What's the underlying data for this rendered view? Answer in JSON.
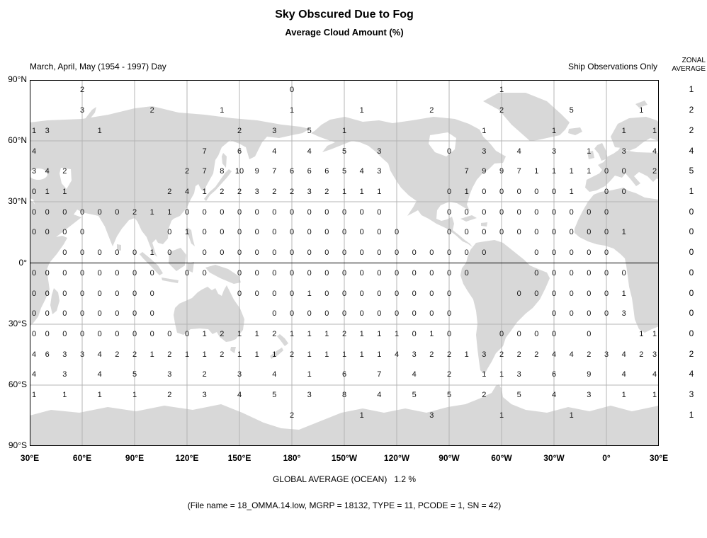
{
  "title": "Sky Obscured Due to Fog",
  "subtitle": "Average Cloud Amount (%)",
  "header": {
    "left_label": "March, April, May (1954 - 1997) Day",
    "right_label": "Ship Observations Only",
    "zonal_header_line1": "ZONAL",
    "zonal_header_line2": "AVERAGE"
  },
  "footer": {
    "global_average": "GLOBAL AVERAGE (OCEAN)   1.2 %",
    "file_info": "(File name = 18_OMMA.14.low, MGRP = 18132, TYPE = 11, PCODE = 1, SN = 42)"
  },
  "colors": {
    "land": "#d8d8d8",
    "grid_line": "#b4b4b4",
    "equator_line": "#000000",
    "frame": "#000000",
    "text": "#000000"
  },
  "chart_data": {
    "type": "heatmap",
    "title": "Sky Obscured Due to Fog",
    "subtitle": "Average Cloud Amount (%)",
    "units": "%",
    "season": "March, April, May (1954 - 1997) Day",
    "source": "Ship Observations Only",
    "global_average_pct": 1.2,
    "lat_labels": [
      "90°N",
      "60°N",
      "30°N",
      "0°",
      "30°S",
      "60°S",
      "90°S"
    ],
    "lon_labels": [
      "30°E",
      "60°E",
      "90°E",
      "120°E",
      "150°E",
      "180°",
      "150°W",
      "120°W",
      "90°W",
      "60°W",
      "30°W",
      "0°",
      "30°E"
    ],
    "lon_start_deg_east": 30,
    "cell_deg": 10,
    "zonal_averages": [
      "1",
      "2",
      "2",
      "4",
      "5",
      "1",
      "0",
      "0",
      "0",
      "0",
      "0",
      "0",
      "0",
      "2",
      "4",
      "3",
      "1",
      null
    ],
    "grid": [
      [
        null,
        null,
        null,
        "2",
        null,
        null,
        null,
        null,
        null,
        null,
        null,
        null,
        null,
        null,
        null,
        "0",
        null,
        null,
        null,
        null,
        null,
        null,
        null,
        null,
        null,
        null,
        null,
        "1",
        null,
        null,
        null,
        null,
        null,
        null,
        null,
        null,
        null
      ],
      [
        null,
        null,
        null,
        "3",
        null,
        null,
        null,
        "2",
        null,
        null,
        null,
        "1",
        null,
        null,
        null,
        "1",
        null,
        null,
        null,
        "1",
        null,
        null,
        null,
        "2",
        null,
        null,
        null,
        "2",
        null,
        null,
        null,
        "5",
        null,
        null,
        null,
        "1",
        null
      ],
      [
        "1",
        "3",
        null,
        null,
        "1",
        null,
        null,
        null,
        null,
        null,
        null,
        null,
        "2",
        null,
        "3",
        null,
        "5",
        null,
        "1",
        null,
        null,
        null,
        null,
        null,
        null,
        null,
        "1",
        null,
        null,
        null,
        "1",
        null,
        null,
        null,
        "1",
        null,
        "1"
      ],
      [
        "4",
        null,
        null,
        null,
        null,
        null,
        null,
        null,
        null,
        null,
        "7",
        null,
        "6",
        null,
        "4",
        null,
        "4",
        null,
        "5",
        null,
        "3",
        null,
        null,
        null,
        "0",
        null,
        "3",
        null,
        "4",
        null,
        "3",
        null,
        "1",
        null,
        "3",
        null,
        "4"
      ],
      [
        "3",
        "4",
        "2",
        null,
        null,
        null,
        null,
        null,
        null,
        "2",
        "7",
        "8",
        "10",
        "9",
        "7",
        "6",
        "6",
        "6",
        "5",
        "4",
        "3",
        null,
        null,
        null,
        null,
        "7",
        "9",
        "9",
        "7",
        "1",
        "1",
        "1",
        "1",
        "0",
        "0",
        null,
        "2"
      ],
      [
        "0",
        "1",
        "1",
        null,
        null,
        null,
        null,
        null,
        "2",
        "4",
        "1",
        "2",
        "2",
        "3",
        "2",
        "2",
        "3",
        "2",
        "1",
        "1",
        "1",
        null,
        null,
        null,
        "0",
        "1",
        "0",
        "0",
        "0",
        "0",
        "0",
        "1",
        null,
        "0",
        "0",
        null,
        null
      ],
      [
        "0",
        "0",
        "0",
        "0",
        "0",
        "0",
        "2",
        "1",
        "1",
        "0",
        "0",
        "0",
        "0",
        "0",
        "0",
        "0",
        "0",
        "0",
        "0",
        "0",
        "0",
        null,
        null,
        null,
        "0",
        "0",
        "0",
        "0",
        "0",
        "0",
        "0",
        "0",
        "0",
        "0",
        null,
        null,
        null
      ],
      [
        "0",
        "0",
        "0",
        "0",
        null,
        null,
        null,
        null,
        "0",
        "1",
        "0",
        "0",
        "0",
        "0",
        "0",
        "0",
        "0",
        "0",
        "0",
        "0",
        "0",
        "0",
        null,
        null,
        "0",
        "0",
        "0",
        "0",
        "0",
        "0",
        "0",
        "0",
        "0",
        "0",
        "1",
        null,
        null
      ],
      [
        null,
        null,
        "0",
        "0",
        "0",
        "0",
        "0",
        "1",
        "0",
        null,
        "0",
        "0",
        "0",
        "0",
        "0",
        "0",
        "0",
        "0",
        "0",
        "0",
        "0",
        "0",
        "0",
        "0",
        "0",
        "0",
        "0",
        null,
        null,
        "0",
        "0",
        "0",
        "0",
        "0",
        null,
        null,
        null
      ],
      [
        "0",
        "0",
        "0",
        "0",
        "0",
        "0",
        "0",
        "0",
        null,
        "0",
        "0",
        null,
        "0",
        "0",
        "0",
        "0",
        "0",
        "0",
        "0",
        "0",
        "0",
        "0",
        "0",
        "0",
        "0",
        "0",
        null,
        null,
        null,
        "0",
        "0",
        "0",
        "0",
        "0",
        "0",
        null,
        null
      ],
      [
        "0",
        "0",
        "0",
        "0",
        "0",
        "0",
        "0",
        "0",
        null,
        null,
        null,
        null,
        "0",
        "0",
        "0",
        "0",
        "1",
        "0",
        "0",
        "0",
        "0",
        "0",
        "0",
        "0",
        "0",
        null,
        null,
        null,
        "0",
        "0",
        "0",
        "0",
        "0",
        "0",
        "1",
        null,
        null
      ],
      [
        "0",
        "0",
        "0",
        "0",
        "0",
        "0",
        "0",
        "0",
        null,
        null,
        null,
        null,
        null,
        null,
        "0",
        "0",
        "0",
        "0",
        "0",
        "0",
        "0",
        "0",
        "0",
        "0",
        "0",
        null,
        null,
        null,
        null,
        null,
        "0",
        "0",
        "0",
        "0",
        "3",
        null,
        null
      ],
      [
        "0",
        "0",
        "0",
        "0",
        "0",
        "0",
        "0",
        "0",
        "0",
        "0",
        "1",
        "2",
        "1",
        "1",
        "2",
        "1",
        "1",
        "1",
        "2",
        "1",
        "1",
        "1",
        "0",
        "1",
        "0",
        null,
        null,
        "0",
        "0",
        "0",
        "0",
        null,
        "0",
        null,
        null,
        "1",
        "1"
      ],
      [
        "4",
        "6",
        "3",
        "3",
        "4",
        "2",
        "2",
        "1",
        "2",
        "1",
        "1",
        "2",
        "1",
        "1",
        "1",
        "2",
        "1",
        "1",
        "1",
        "1",
        "1",
        "4",
        "3",
        "2",
        "2",
        "1",
        "3",
        "2",
        "2",
        "2",
        "4",
        "4",
        "2",
        "3",
        "4",
        "2",
        "3"
      ],
      [
        "4",
        null,
        "3",
        null,
        "4",
        null,
        "5",
        null,
        "3",
        null,
        "2",
        null,
        "3",
        null,
        "4",
        null,
        "1",
        null,
        "6",
        null,
        "7",
        null,
        "4",
        null,
        "2",
        null,
        "1",
        "1",
        "3",
        null,
        "6",
        null,
        "9",
        null,
        "4",
        null,
        "4"
      ],
      [
        "1",
        null,
        "1",
        null,
        "1",
        null,
        "1",
        null,
        "2",
        null,
        "3",
        null,
        "4",
        null,
        "5",
        null,
        "3",
        null,
        "8",
        null,
        "4",
        null,
        "5",
        null,
        "5",
        null,
        "2",
        null,
        "5",
        null,
        "4",
        null,
        "3",
        null,
        "1",
        null,
        "1"
      ],
      [
        null,
        null,
        null,
        null,
        null,
        null,
        null,
        null,
        null,
        null,
        null,
        null,
        null,
        null,
        null,
        "2",
        null,
        null,
        null,
        "1",
        null,
        null,
        null,
        "3",
        null,
        null,
        null,
        "1",
        null,
        null,
        null,
        "1",
        null,
        null,
        null,
        null,
        null
      ],
      [
        null,
        null,
        null,
        null,
        null,
        null,
        null,
        null,
        null,
        null,
        null,
        null,
        null,
        null,
        null,
        null,
        null,
        null,
        null,
        null,
        null,
        null,
        null,
        null,
        null,
        null,
        null,
        null,
        null,
        null,
        null,
        null,
        null,
        null,
        null,
        null,
        null
      ]
    ]
  }
}
